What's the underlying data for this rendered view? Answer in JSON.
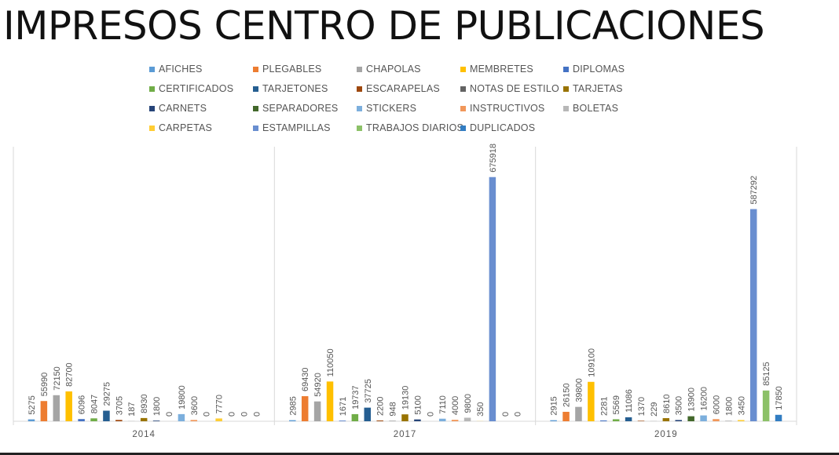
{
  "title": "IMPRESOS CENTRO DE PUBLICACIONES",
  "chart_data": {
    "type": "bar",
    "title": "IMPRESOS CENTRO DE PUBLICACIONES",
    "categories": [
      "2014",
      "2017",
      "2019"
    ],
    "legend_position": "top",
    "gridlines": "vertical separators only",
    "series": [
      {
        "name": "AFICHES",
        "color": "#5B9BD5",
        "values": [
          5275,
          2985,
          2915
        ]
      },
      {
        "name": "PLEGABLES",
        "color": "#ED7D31",
        "values": [
          55990,
          69430,
          26150
        ]
      },
      {
        "name": "CHAPOLAS",
        "color": "#A5A5A5",
        "values": [
          72150,
          54920,
          39800
        ]
      },
      {
        "name": "MEMBRETES",
        "color": "#FFC000",
        "values": [
          82700,
          110050,
          109100
        ]
      },
      {
        "name": "DIPLOMAS",
        "color": "#4472C4",
        "values": [
          6096,
          1671,
          2281
        ]
      },
      {
        "name": "CERTIFICADOS",
        "color": "#70AD47",
        "values": [
          8047,
          19737,
          5569
        ]
      },
      {
        "name": "TARJETONES",
        "color": "#255E91",
        "values": [
          29275,
          37725,
          11086
        ]
      },
      {
        "name": "ESCARAPELAS",
        "color": "#9E480E",
        "values": [
          3705,
          2200,
          1370
        ]
      },
      {
        "name": "NOTAS DE ESTILO",
        "color": "#636363",
        "values": [
          187,
          948,
          229
        ]
      },
      {
        "name": "TARJETAS",
        "color": "#997300",
        "values": [
          8930,
          19130,
          8610
        ]
      },
      {
        "name": "CARNETS",
        "color": "#264478",
        "values": [
          1800,
          5100,
          3500
        ]
      },
      {
        "name": "SEPARADORES",
        "color": "#43682B",
        "values": [
          0,
          0,
          13900
        ]
      },
      {
        "name": "STICKERS",
        "color": "#7CAFDD",
        "values": [
          19800,
          7110,
          16200
        ]
      },
      {
        "name": "INSTRUCTIVOS",
        "color": "#F1975A",
        "values": [
          3600,
          4000,
          6000
        ]
      },
      {
        "name": "BOLETAS",
        "color": "#B7B7B7",
        "values": [
          0,
          9800,
          1800
        ]
      },
      {
        "name": "CARPETAS",
        "color": "#FFCD33",
        "values": [
          7770,
          350,
          3450
        ]
      },
      {
        "name": "ESTAMPILLAS",
        "color": "#698ED0",
        "values": [
          0,
          675918,
          587292
        ]
      },
      {
        "name": "TRABAJOS DIARIOS",
        "color": "#8CC168",
        "values": [
          0,
          0,
          85125
        ]
      },
      {
        "name": "DUPLICADOS",
        "color": "#327DC2",
        "values": [
          0,
          0,
          17850
        ]
      }
    ],
    "ylim": [
      0,
      760000
    ]
  }
}
